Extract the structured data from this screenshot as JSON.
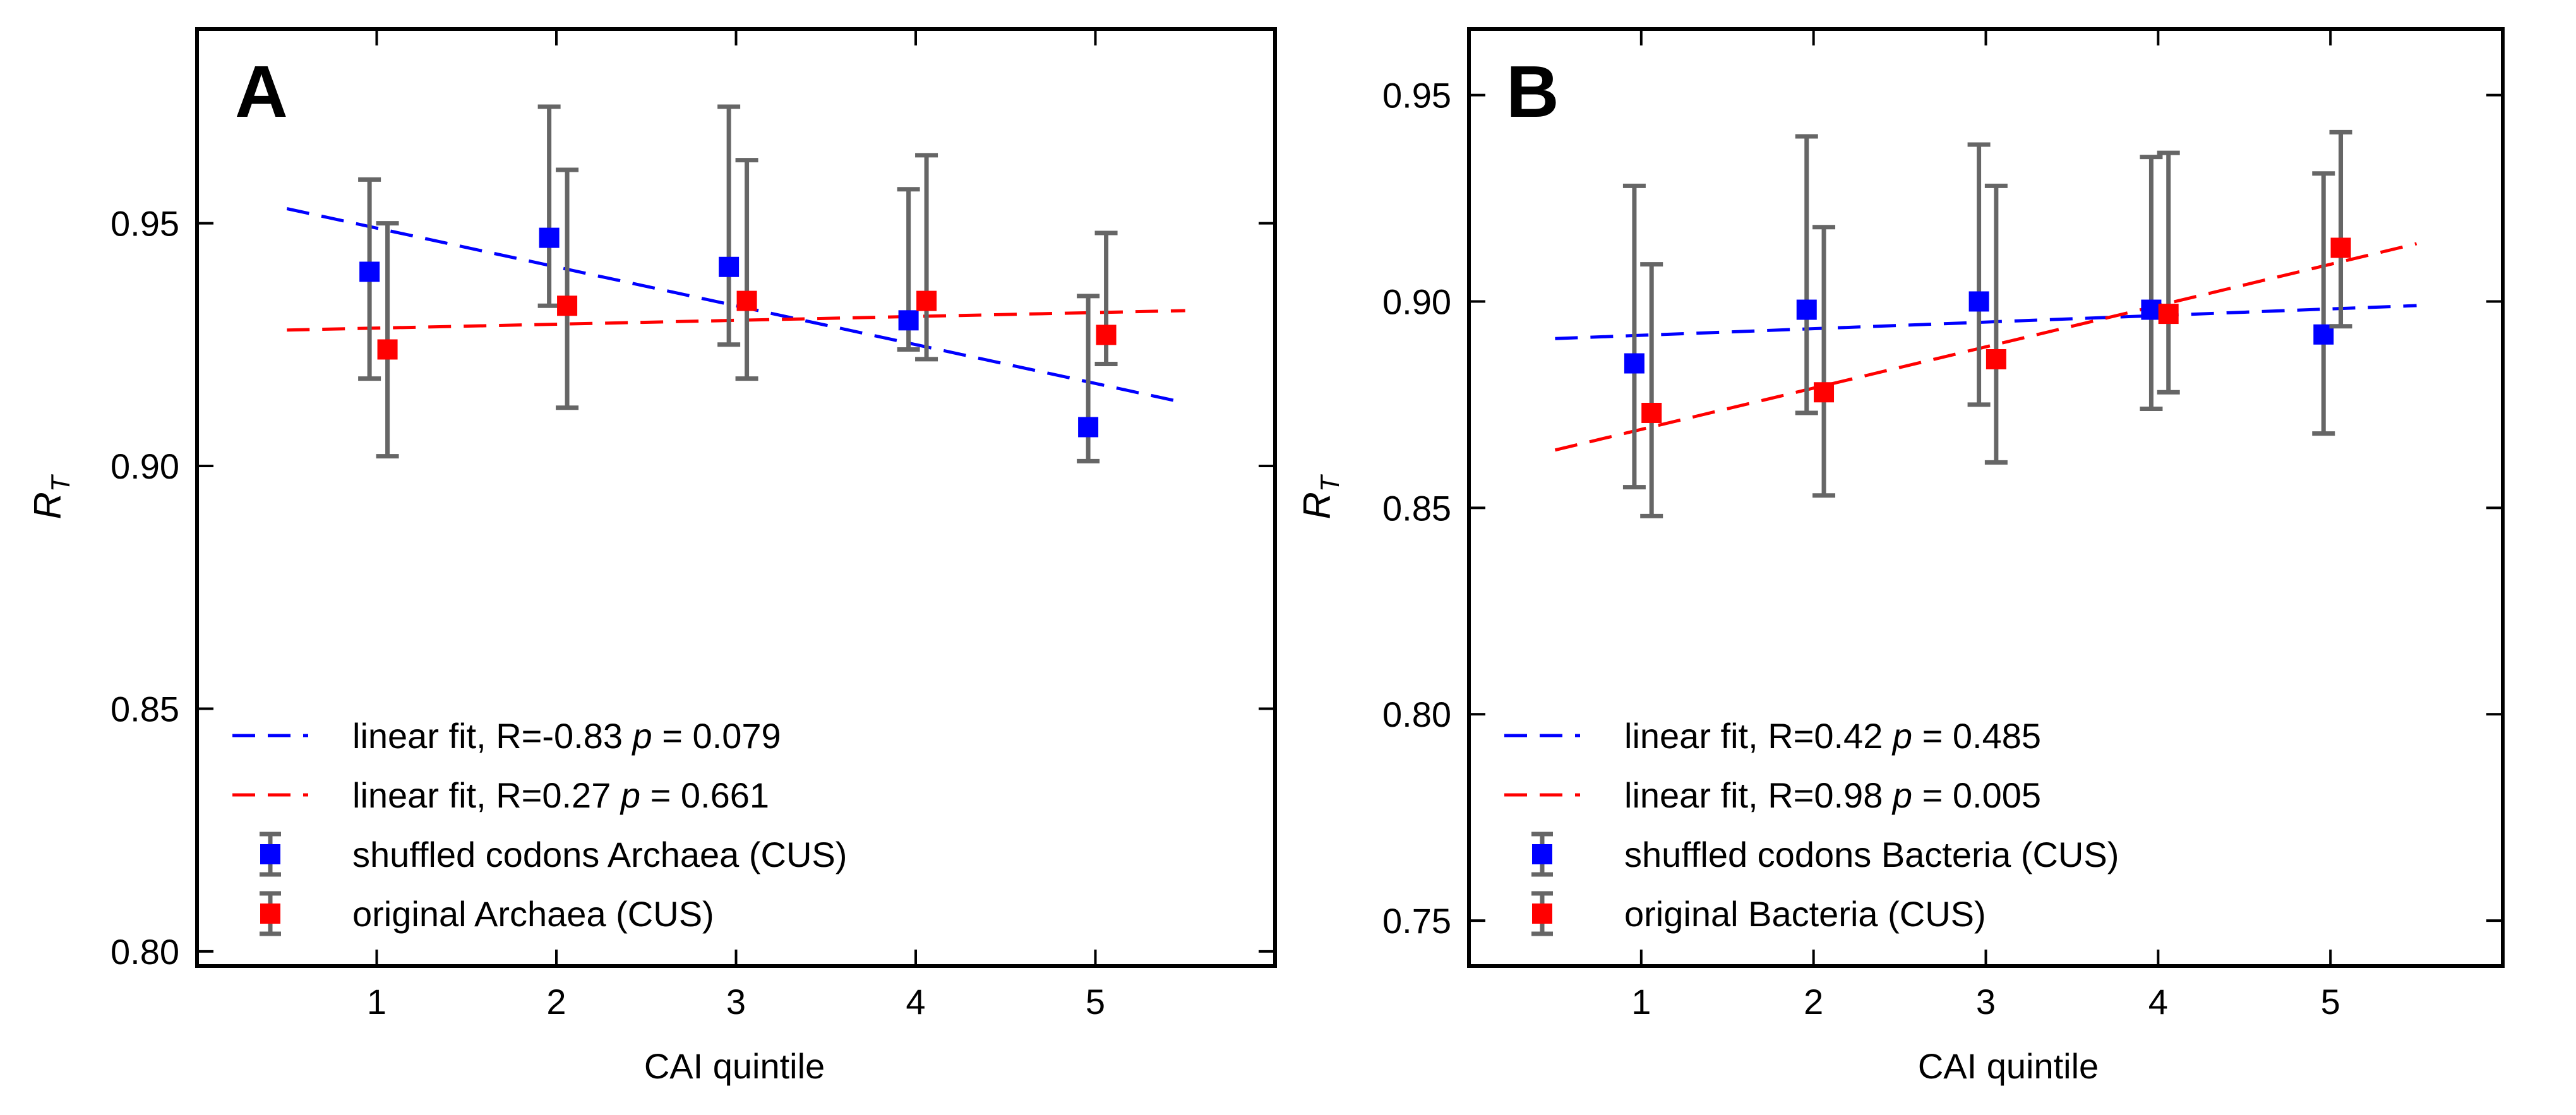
{
  "colors": {
    "shuffled": "#0000ff",
    "original": "#ff0000",
    "errorbar": "#666666",
    "axes": "#000000"
  },
  "chart_data": [
    {
      "type": "scatter",
      "panel_label": "A",
      "xlabel": "CAI quintile",
      "ylabel_main": "R",
      "ylabel_sub": "T",
      "xlim": [
        0,
        6
      ],
      "ylim": [
        0.797,
        0.99
      ],
      "x_ticks": [
        1,
        2,
        3,
        4,
        5
      ],
      "x_tick_labels": [
        "1",
        "2",
        "3",
        "4",
        "5"
      ],
      "y_ticks": [
        0.8,
        0.85,
        0.9,
        0.95
      ],
      "y_tick_labels": [
        "0.80",
        "0.85",
        "0.90",
        "0.95"
      ],
      "grid": false,
      "legend_position": "lower-left",
      "series": [
        {
          "name": "shuffled codons Archaea (CUS)",
          "kind": "points",
          "color_key": "shuffled",
          "x": [
            0.96,
            1.96,
            2.96,
            3.96,
            4.96
          ],
          "y": [
            0.94,
            0.947,
            0.941,
            0.93,
            0.908
          ],
          "err_low": [
            0.918,
            0.933,
            0.925,
            0.924,
            0.901
          ],
          "err_high": [
            0.959,
            0.974,
            0.974,
            0.957,
            0.935
          ]
        },
        {
          "name": "original Archaea (CUS)",
          "kind": "points",
          "color_key": "original",
          "x": [
            1.06,
            2.06,
            3.06,
            4.06,
            5.06
          ],
          "y": [
            0.924,
            0.933,
            0.934,
            0.934,
            0.927
          ],
          "err_low": [
            0.902,
            0.912,
            0.918,
            0.922,
            0.921
          ],
          "err_high": [
            0.95,
            0.961,
            0.963,
            0.964,
            0.948
          ]
        },
        {
          "name": "linear fit",
          "kind": "fit",
          "color_key": "shuffled",
          "R": "-0.83",
          "p": "0.079",
          "x": [
            0.5,
            5.5
          ],
          "y": [
            0.953,
            0.913
          ]
        },
        {
          "name": "linear fit",
          "kind": "fit",
          "color_key": "original",
          "R": "0.27",
          "p": "0.661",
          "x": [
            0.5,
            5.5
          ],
          "y": [
            0.928,
            0.932
          ]
        }
      ],
      "legend": [
        {
          "pre": "linear fit, R=-0.83 ",
          "p_symbol": "p",
          "post": " = 0.079",
          "kind": "line",
          "color_key": "shuffled"
        },
        {
          "pre": "linear fit, R=0.27 ",
          "p_symbol": "p",
          "post": " = 0.661",
          "kind": "line",
          "color_key": "original"
        },
        {
          "pre": "shuffled codons Archaea (CUS)",
          "p_symbol": "",
          "post": "",
          "kind": "marker",
          "color_key": "shuffled"
        },
        {
          "pre": "original Archaea (CUS)",
          "p_symbol": "",
          "post": "",
          "kind": "marker",
          "color_key": "original"
        }
      ]
    },
    {
      "type": "scatter",
      "panel_label": "B",
      "xlabel": "CAI quintile",
      "ylabel_main": "R",
      "ylabel_sub": "T",
      "xlim": [
        0,
        6
      ],
      "ylim": [
        0.739,
        0.966
      ],
      "x_ticks": [
        1,
        2,
        3,
        4,
        5
      ],
      "x_tick_labels": [
        "1",
        "2",
        "3",
        "4",
        "5"
      ],
      "y_ticks": [
        0.75,
        0.8,
        0.85,
        0.9,
        0.95
      ],
      "y_tick_labels": [
        "0.75",
        "0.80",
        "0.85",
        "0.90",
        "0.95"
      ],
      "grid": false,
      "legend_position": "lower-left",
      "series": [
        {
          "name": "shuffled codons Bacteria (CUS)",
          "kind": "points",
          "color_key": "shuffled",
          "x": [
            0.96,
            1.96,
            2.96,
            3.96,
            4.96
          ],
          "y": [
            0.885,
            0.898,
            0.9,
            0.898,
            0.892
          ],
          "err_low": [
            0.855,
            0.873,
            0.875,
            0.874,
            0.868
          ],
          "err_high": [
            0.928,
            0.94,
            0.938,
            0.935,
            0.931
          ]
        },
        {
          "name": "original Bacteria (CUS)",
          "kind": "points",
          "color_key": "original",
          "x": [
            1.06,
            2.06,
            3.06,
            4.06,
            5.06
          ],
          "y": [
            0.873,
            0.878,
            0.886,
            0.897,
            0.913
          ],
          "err_low": [
            0.848,
            0.853,
            0.861,
            0.878,
            0.894
          ],
          "err_high": [
            0.909,
            0.918,
            0.928,
            0.936,
            0.941
          ]
        },
        {
          "name": "linear fit",
          "kind": "fit",
          "color_key": "shuffled",
          "R": "0.42",
          "p": "0.485",
          "x": [
            0.5,
            5.5
          ],
          "y": [
            0.891,
            0.899
          ]
        },
        {
          "name": "linear fit",
          "kind": "fit",
          "color_key": "original",
          "R": "0.98",
          "p": "0.005",
          "x": [
            0.5,
            5.5
          ],
          "y": [
            0.864,
            0.914
          ]
        }
      ],
      "legend": [
        {
          "pre": "linear fit, R=0.42 ",
          "p_symbol": "p",
          "post": " = 0.485",
          "kind": "line",
          "color_key": "shuffled"
        },
        {
          "pre": "linear fit, R=0.98 ",
          "p_symbol": "p",
          "post": " = 0.005",
          "kind": "line",
          "color_key": "original"
        },
        {
          "pre": "shuffled codons Bacteria (CUS)",
          "p_symbol": "",
          "post": "",
          "kind": "marker",
          "color_key": "shuffled"
        },
        {
          "pre": "original Bacteria (CUS)",
          "p_symbol": "",
          "post": "",
          "kind": "marker",
          "color_key": "original"
        }
      ]
    }
  ]
}
